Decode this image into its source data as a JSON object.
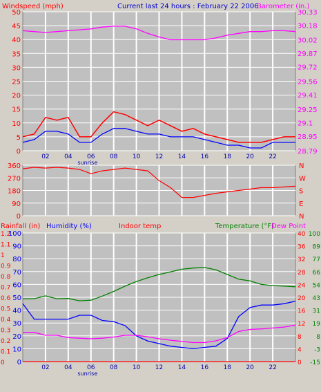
{
  "header": {
    "left_title": "Windspeed (mph)",
    "center_title": "Current last 24 hours : February 22 2006",
    "right_title": "Barometer (in.)"
  },
  "hour_labels": [
    "02",
    "04",
    "06",
    "08",
    "10",
    "12",
    "14",
    "16",
    "18",
    "20",
    "22"
  ],
  "sunrise_label": "sunrise",
  "colors": {
    "background": "#d4d0c8",
    "plot_background": "#c0c0c0",
    "grid": "#ffffff",
    "wind": "#ff0000",
    "wind_avg": "#0000ff",
    "barometer": "#ff00ff",
    "direction": "#ff0000",
    "humidity": "#0000ff",
    "temperature": "#008000",
    "dew_point": "#ff00ff",
    "rainfall": "#ff0000"
  },
  "chart_data": [
    {
      "type": "line",
      "title": "Windspeed (mph) / Barometer (in.)",
      "xlabel": "",
      "x_hours": [
        0,
        1,
        2,
        3,
        4,
        5,
        6,
        7,
        8,
        9,
        10,
        11,
        12,
        13,
        14,
        15,
        16,
        17,
        18,
        19,
        20,
        21,
        22,
        23,
        24
      ],
      "xlim": [
        0,
        24
      ],
      "left_axis": {
        "label": "Windspeed (mph)",
        "ticks": [
          0,
          5,
          10,
          15,
          20,
          25,
          30,
          35,
          40,
          45,
          50
        ],
        "ylim": [
          0,
          50
        ]
      },
      "right_axis": {
        "label": "Barometer (in.)",
        "ticks": [
          28.79,
          28.95,
          29.1,
          29.25,
          29.41,
          29.56,
          29.72,
          29.87,
          30.02,
          30.18,
          30.33
        ],
        "ylim": [
          28.79,
          30.33
        ]
      },
      "series": [
        {
          "name": "Windspeed (mph)",
          "axis": "left",
          "color": "#ff0000",
          "values": [
            5,
            6,
            12,
            11,
            12,
            5,
            5,
            10,
            14,
            13,
            11,
            9,
            11,
            9,
            7,
            8,
            6,
            5,
            4,
            3,
            3,
            3,
            4,
            5,
            5
          ]
        },
        {
          "name": "",
          "axis": "left",
          "color": "#0000ff",
          "values": [
            3,
            4,
            7,
            7,
            6,
            3,
            3,
            6,
            8,
            8,
            7,
            6,
            6,
            5,
            5,
            5,
            4,
            3,
            2,
            2,
            1,
            1,
            3,
            3,
            3
          ]
        },
        {
          "name": "Barometer (in.)",
          "axis": "right",
          "color": "#ff00ff",
          "values": [
            30.12,
            30.11,
            30.1,
            30.11,
            30.12,
            30.13,
            30.14,
            30.16,
            30.17,
            30.17,
            30.14,
            30.09,
            30.05,
            30.02,
            30.02,
            30.02,
            30.02,
            30.04,
            30.07,
            30.09,
            30.11,
            30.11,
            30.12,
            30.12,
            30.11
          ]
        }
      ],
      "grid": true
    },
    {
      "type": "line",
      "title": "",
      "x_hours": [
        0,
        1,
        2,
        3,
        4,
        5,
        6,
        7,
        8,
        9,
        10,
        11,
        12,
        13,
        14,
        15,
        16,
        17,
        18,
        19,
        20,
        21,
        22,
        23,
        24
      ],
      "xlim": [
        0,
        24
      ],
      "left_axis": {
        "ticks": [
          0,
          90,
          180,
          270,
          360
        ],
        "ylim": [
          0,
          360
        ]
      },
      "right_axis": {
        "ticks": [
          "N",
          "E",
          "S",
          "W",
          "N"
        ]
      },
      "series": [
        {
          "name": "",
          "color": "#ff0000",
          "values": [
            335,
            345,
            340,
            345,
            340,
            330,
            300,
            320,
            330,
            340,
            330,
            320,
            250,
            200,
            130,
            130,
            145,
            160,
            170,
            180,
            190,
            200,
            200,
            205,
            210
          ]
        }
      ],
      "grid": true
    },
    {
      "type": "line",
      "title": "Indoor temp",
      "x_hours": [
        0,
        1,
        2,
        3,
        4,
        5,
        6,
        7,
        8,
        9,
        10,
        11,
        12,
        13,
        14,
        15,
        16,
        17,
        18,
        19,
        20,
        21,
        22,
        23,
        24
      ],
      "xlim": [
        0,
        24
      ],
      "axes": {
        "rainfall": {
          "label": "Rainfall (in)",
          "ticks": [
            0,
            0.1,
            0.2,
            0.3,
            0.4,
            0.5,
            0.6,
            0.7,
            0.8,
            0.9,
            1,
            1.1,
            1.2
          ]
        },
        "humidity": {
          "label": "Humidity (%)",
          "ticks": [
            0,
            10,
            20,
            30,
            40,
            50,
            60,
            70,
            80,
            90,
            100
          ],
          "ylim": [
            0,
            100
          ]
        },
        "indoor_temp": {
          "ticks": [
            -15,
            -3,
            8,
            19,
            31,
            43,
            54,
            66,
            77,
            89,
            100
          ]
        },
        "temperature": {
          "label": "Temperature (°F)",
          "ticks": [
            -4,
            0,
            4,
            8,
            12,
            16,
            20,
            24,
            28,
            32,
            36,
            40
          ],
          "ylim": [
            -4,
            40
          ]
        },
        "dew_point": {
          "label": "Dew Point"
        }
      },
      "series": [
        {
          "name": "Humidity (%)",
          "axis": "humidity",
          "color": "#0000ff",
          "values": [
            45,
            33,
            33,
            33,
            33,
            36,
            36,
            32,
            31,
            28,
            20,
            16,
            14,
            12,
            11,
            10,
            11,
            12,
            18,
            35,
            42,
            44,
            44,
            45,
            47
          ]
        },
        {
          "name": "Temperature (°F)",
          "axis": "temperature",
          "color": "#008000",
          "values": [
            17.5,
            17.5,
            18.5,
            17.5,
            17.6,
            16.8,
            17,
            18.4,
            20,
            21.8,
            23.4,
            24.7,
            25.8,
            26.7,
            27.6,
            28,
            28.2,
            27.4,
            25.8,
            24.2,
            23.6,
            22.4,
            22,
            21.8,
            21.6
          ]
        },
        {
          "name": "Dew Point",
          "axis": "temperature",
          "color": "#ff00ff",
          "values": [
            6,
            6,
            5,
            5,
            4.2,
            4,
            3.8,
            4,
            4.4,
            5,
            5,
            4.5,
            3.8,
            3.3,
            2.9,
            2.5,
            2.5,
            3.1,
            4.2,
            6.3,
            7,
            7.2,
            7.5,
            7.8,
            8.5
          ]
        },
        {
          "name": "Rainfall (in)",
          "axis": "rainfall",
          "color": "#ff0000",
          "values": [
            0,
            0,
            0,
            0,
            0,
            0,
            0,
            0,
            0,
            0,
            0,
            0,
            0,
            0,
            0,
            0,
            0,
            0,
            0,
            0,
            0,
            0,
            0,
            0,
            0
          ]
        }
      ],
      "grid": true
    }
  ]
}
